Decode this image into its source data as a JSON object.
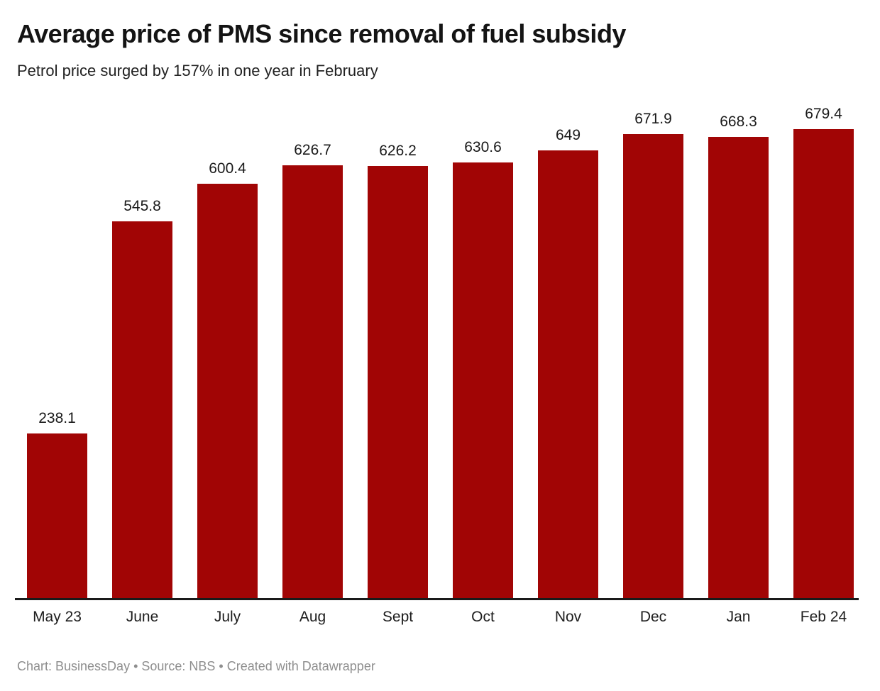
{
  "header": {
    "title": "Average price of PMS since removal of fuel subsidy",
    "subtitle": "Petrol price surged by 157% in one year in February"
  },
  "chart_data": {
    "type": "bar",
    "categories": [
      "May 23",
      "June",
      "July",
      "Aug",
      "Sept",
      "Oct",
      "Nov",
      "Dec",
      "Jan",
      "Feb 24"
    ],
    "values": [
      238.1,
      545.8,
      600.4,
      626.7,
      626.2,
      630.6,
      649,
      671.9,
      668.3,
      679.4
    ],
    "title": "Average price of PMS since removal of fuel subsidy",
    "subtitle": "Petrol price surged by 157% in one year in February",
    "xlabel": "",
    "ylabel": "",
    "ylim": [
      0,
      700
    ],
    "bar_color": "#a10505",
    "axis_color": "#1a1a1a",
    "grid": false,
    "legend": false,
    "value_labels": true
  },
  "footer": {
    "text": "Chart: BusinessDay • Source: NBS • Created with Datawrapper"
  }
}
